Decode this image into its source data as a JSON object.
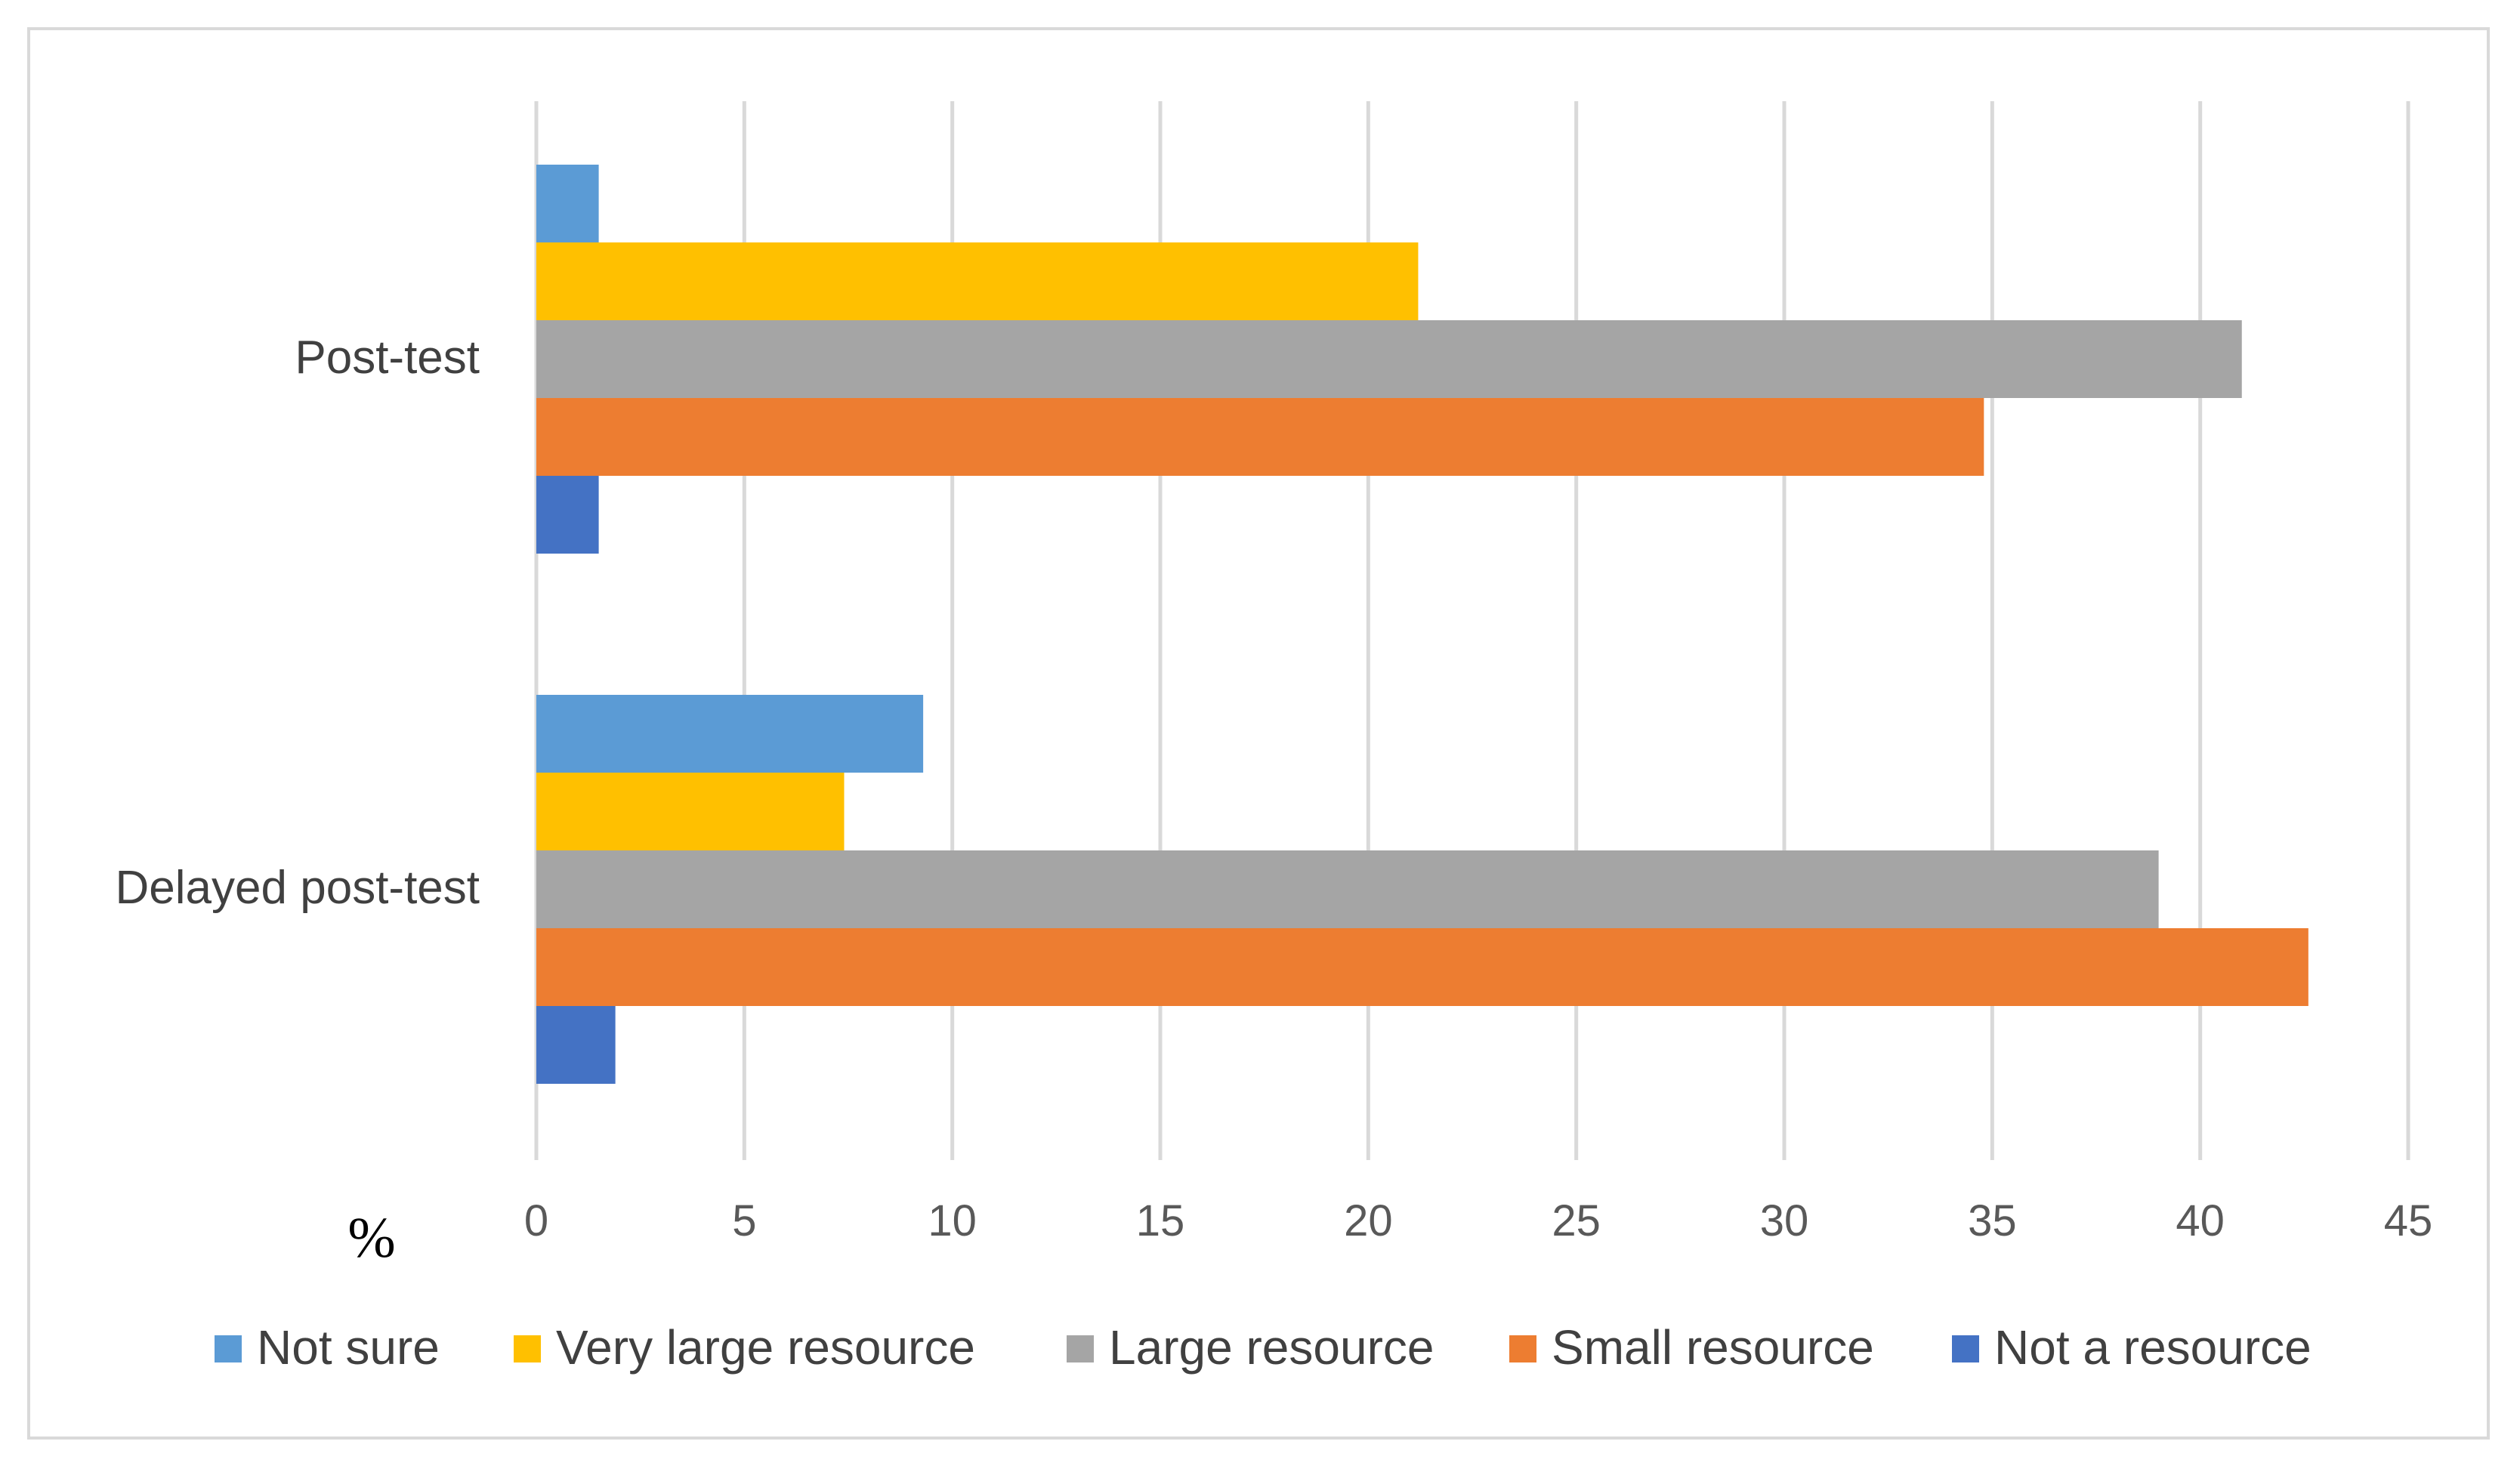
{
  "chart_data": {
    "type": "bar",
    "orientation": "horizontal",
    "categories": [
      "Post-test",
      "Delayed post-test"
    ],
    "series": [
      {
        "name": "Not sure",
        "color": "#5b9bd5",
        "values": [
          1.5,
          9.3
        ]
      },
      {
        "name": "Very large resource",
        "color": "#ffc000",
        "values": [
          21.2,
          7.4
        ]
      },
      {
        "name": "Large resource",
        "color": "#a5a5a5",
        "values": [
          41.0,
          39.0
        ]
      },
      {
        "name": "Small resource",
        "color": "#ed7d31",
        "values": [
          34.8,
          42.6
        ]
      },
      {
        "name": "Not a resource",
        "color": "#4472c4",
        "values": [
          1.5,
          1.9
        ]
      }
    ],
    "xlim": [
      0,
      45
    ],
    "xticks": [
      "0",
      "5",
      "10",
      "15",
      "20",
      "25",
      "30",
      "35",
      "40",
      "45"
    ],
    "xlabel": "%",
    "grid": true,
    "legend_position": "bottom",
    "gridline_color": "#d9d9d9"
  }
}
